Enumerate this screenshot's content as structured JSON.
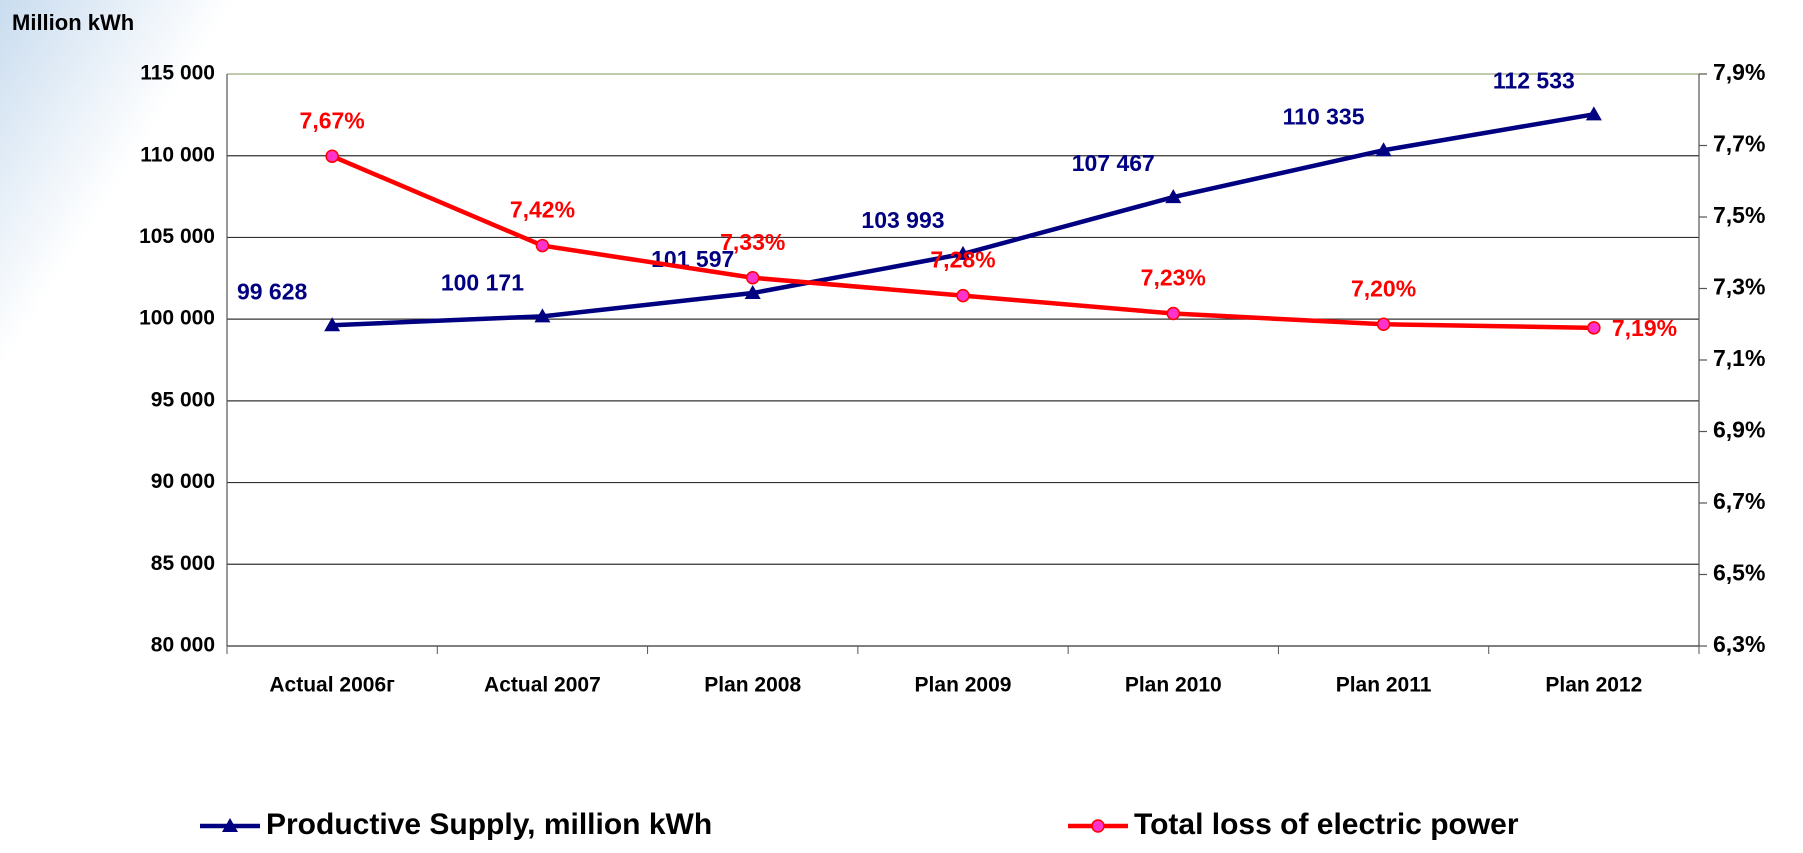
{
  "chart_data": {
    "type": "line",
    "title": "Million kWh",
    "categories": [
      "Actual 2006г",
      "Actual  2007",
      "Plan 2008",
      "Plan 2009",
      "Plan 2010",
      "Plan 2011",
      "Plan 2012"
    ],
    "series": [
      {
        "name": "Productive Supply, million kWh",
        "color": "#000080",
        "values": [
          99628,
          100171,
          101597,
          103993,
          107467,
          110335,
          112533
        ],
        "value_labels": [
          "99 628",
          "100 171",
          "101 597",
          "103 993",
          "107 467",
          "110 335",
          "112 533"
        ]
      },
      {
        "name": "Total loss of electric power",
        "color": "#ff0000",
        "axis": "y2",
        "values": [
          7.67,
          7.42,
          7.33,
          7.28,
          7.23,
          7.2,
          7.19
        ],
        "value_labels": [
          "7,67%",
          "7,42%",
          "7,33%",
          "7,28%",
          "7,23%",
          "7,20%",
          "7,19%"
        ]
      }
    ],
    "ylim": [
      80000,
      115000
    ],
    "yticks": [
      {
        "value": 80000,
        "label": "80 000"
      },
      {
        "value": 85000,
        "label": "85 000"
      },
      {
        "value": 90000,
        "label": "90 000"
      },
      {
        "value": 95000,
        "label": "95 000"
      },
      {
        "value": 100000,
        "label": "100 000"
      },
      {
        "value": 105000,
        "label": "105 000"
      },
      {
        "value": 110000,
        "label": "110 000"
      },
      {
        "value": 115000,
        "label": "115 000"
      }
    ],
    "y2lim": [
      6.3,
      7.9
    ],
    "y2ticks": [
      {
        "value": 6.3,
        "label": "6,3%"
      },
      {
        "value": 6.5,
        "label": "6,5%"
      },
      {
        "value": 6.7,
        "label": "6,7%"
      },
      {
        "value": 6.9,
        "label": "6,9%"
      },
      {
        "value": 7.1,
        "label": "7,1%"
      },
      {
        "value": 7.3,
        "label": "7,3%"
      },
      {
        "value": 7.5,
        "label": "7,5%"
      },
      {
        "value": 7.7,
        "label": "7,7%"
      },
      {
        "value": 7.9,
        "label": "7,9%"
      }
    ],
    "grid": true
  }
}
